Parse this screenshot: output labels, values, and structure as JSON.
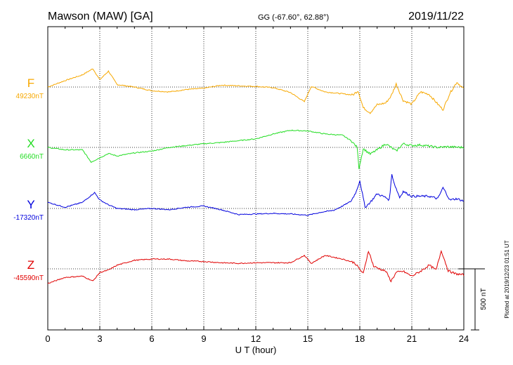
{
  "header": {
    "station": "Mawson (MAW)  [GA]",
    "coords": "GG (-67.60°,  62.88°)",
    "date": "2019/11/22"
  },
  "chart_data": {
    "type": "line",
    "xlabel": "U T (hour)",
    "xlim": [
      0,
      24
    ],
    "xticks": [
      0,
      3,
      6,
      9,
      12,
      15,
      18,
      21,
      24
    ],
    "scale_bar": {
      "label": "500 nT",
      "value_nT": 500
    },
    "plotted_note": "Plotted at 2019/12/23 01:51  UT",
    "series": [
      {
        "name": "F",
        "baseline_label": "49230nT",
        "baseline_nT": 49230,
        "color": "#f7a800",
        "x": [
          0,
          1,
          2,
          2.6,
          3,
          3.5,
          4,
          5,
          6,
          7,
          8,
          9,
          10,
          11,
          12,
          13,
          14,
          14.8,
          15.2,
          16,
          17,
          17.6,
          17.9,
          18.2,
          18.6,
          19,
          19.5,
          19.8,
          20.1,
          20.5,
          21,
          21.5,
          22,
          22.5,
          22.8,
          23.2,
          23.6,
          24
        ],
        "y": [
          49230,
          49283,
          49330,
          49380,
          49290,
          49360,
          49250,
          49230,
          49200,
          49190,
          49210,
          49220,
          49245,
          49240,
          49235,
          49225,
          49185,
          49110,
          49235,
          49190,
          49175,
          49165,
          49200,
          49060,
          49020,
          49085,
          49100,
          49155,
          49255,
          49120,
          49090,
          49190,
          49170,
          49090,
          49045,
          49180,
          49270,
          49215
        ]
      },
      {
        "name": "X",
        "baseline_label": "6660nT",
        "baseline_nT": 6660,
        "color": "#22dd22",
        "x": [
          0,
          1,
          2,
          2.5,
          3,
          3.5,
          4,
          5,
          6,
          7,
          8,
          9,
          10,
          11,
          12,
          13,
          14,
          15,
          16,
          17,
          17.5,
          17.85,
          17.95,
          18.2,
          18.6,
          19,
          19.5,
          19.8,
          20.1,
          20.5,
          21,
          21.5,
          22,
          22.5,
          23,
          24
        ],
        "y": [
          6660,
          6640,
          6640,
          6540,
          6575,
          6610,
          6590,
          6615,
          6630,
          6660,
          6675,
          6690,
          6700,
          6715,
          6730,
          6770,
          6800,
          6795,
          6770,
          6760,
          6715,
          6660,
          6490,
          6650,
          6605,
          6640,
          6690,
          6660,
          6630,
          6690,
          6675,
          6680,
          6670,
          6660,
          6665,
          6660
        ]
      },
      {
        "name": "Y",
        "baseline_label": "-17320nT",
        "baseline_nT": -17320,
        "color": "#0000dd",
        "x": [
          0,
          1,
          2,
          2.7,
          3,
          3.5,
          4,
          5,
          6,
          7,
          8,
          9,
          10,
          11,
          12,
          13,
          14,
          15,
          15.8,
          16.5,
          17,
          17.5,
          17.8,
          18,
          18.3,
          18.6,
          19,
          19.5,
          19.7,
          19.85,
          20,
          20.3,
          20.5,
          21,
          21.5,
          22,
          22.5,
          22.8,
          23.2,
          23.6,
          24
        ],
        "y": [
          -17270,
          -17310,
          -17270,
          -17190,
          -17250,
          -17290,
          -17320,
          -17330,
          -17320,
          -17330,
          -17310,
          -17300,
          -17330,
          -17370,
          -17365,
          -17360,
          -17365,
          -17375,
          -17350,
          -17335,
          -17300,
          -17260,
          -17180,
          -17090,
          -17310,
          -17270,
          -17200,
          -17230,
          -17250,
          -17040,
          -17120,
          -17230,
          -17180,
          -17220,
          -17220,
          -17220,
          -17240,
          -17150,
          -17250,
          -17240,
          -17260
        ]
      },
      {
        "name": "Z",
        "baseline_label": "-45590nT",
        "baseline_nT": -45590,
        "color": "#e00000",
        "x": [
          0,
          1,
          2,
          2.6,
          3,
          3.5,
          4,
          5,
          6,
          7,
          8,
          9,
          10,
          11,
          12,
          13,
          14,
          14.8,
          15.2,
          16,
          17,
          17.7,
          18.2,
          18.5,
          18.8,
          19.5,
          19.8,
          20.1,
          20.5,
          21,
          21.5,
          22,
          22.4,
          22.7,
          23.1,
          23.5,
          24
        ],
        "y": [
          -45710,
          -45660,
          -45650,
          -45690,
          -45620,
          -45600,
          -45560,
          -45520,
          -45510,
          -45510,
          -45525,
          -45530,
          -45540,
          -45545,
          -45540,
          -45540,
          -45540,
          -45480,
          -45545,
          -45480,
          -45510,
          -45540,
          -45630,
          -45440,
          -45570,
          -45610,
          -45690,
          -45620,
          -45610,
          -45650,
          -45610,
          -45560,
          -45600,
          -45440,
          -45605,
          -45630,
          -45640
        ]
      }
    ]
  }
}
